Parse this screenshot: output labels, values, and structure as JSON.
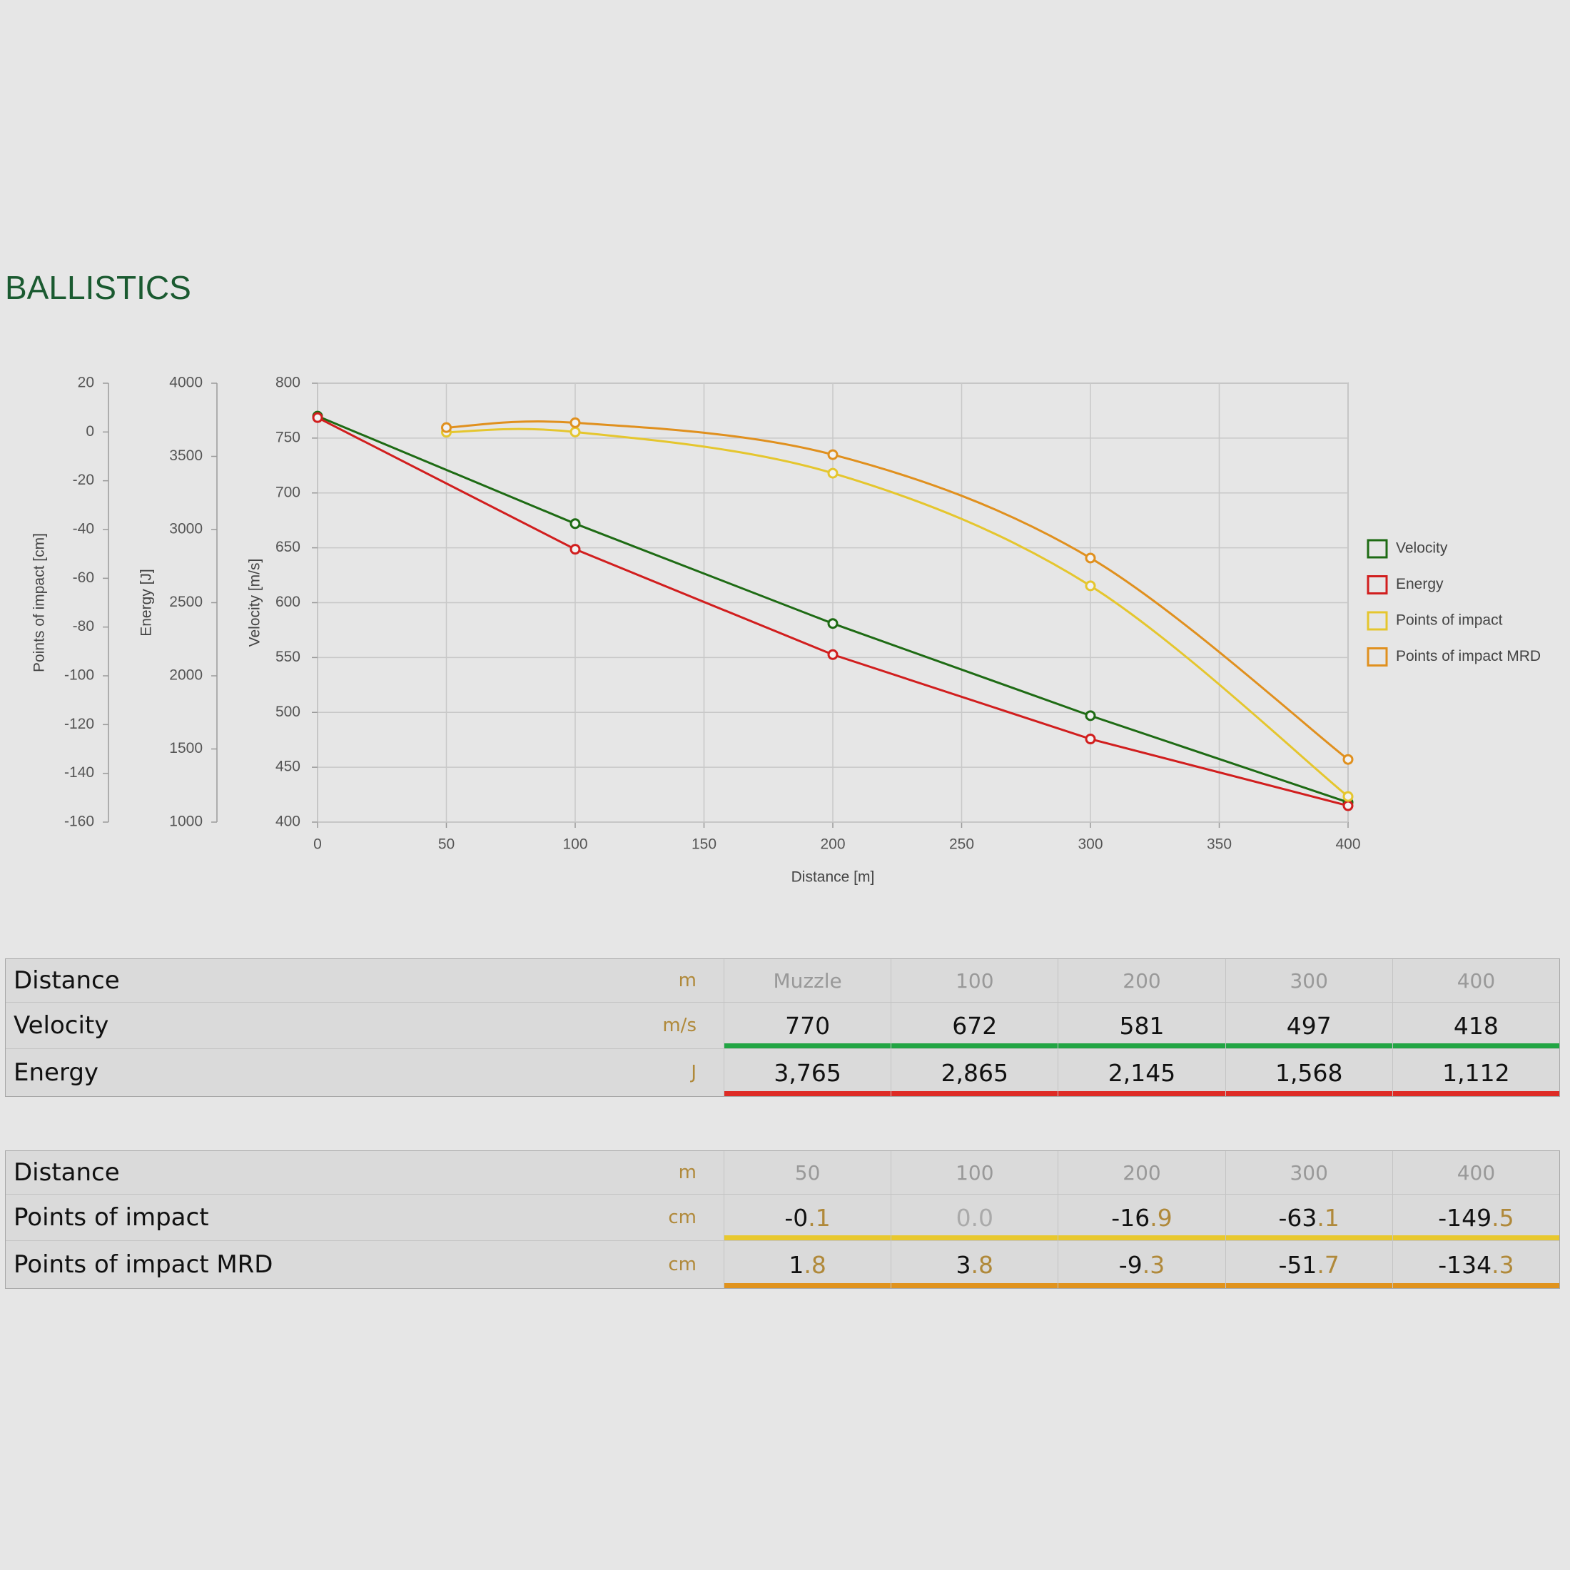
{
  "title": "BALLISTICS",
  "chart_data": {
    "type": "line",
    "xlabel": "Distance [m]",
    "xlim": [
      0,
      400
    ],
    "xticks": [
      0,
      50,
      100,
      150,
      200,
      250,
      300,
      350,
      400
    ],
    "ylabel": "Velocity [m/s]",
    "ylim": [
      400,
      800
    ],
    "yticks": [
      400,
      450,
      500,
      550,
      600,
      650,
      700,
      750,
      800
    ],
    "y2label": "Energy [J]",
    "y2lim": [
      1000,
      4000
    ],
    "y2ticks": [
      1000,
      1500,
      2000,
      2500,
      3000,
      3500,
      4000
    ],
    "y3label": "Points of impact [cm]",
    "y3lim": [
      -160,
      20
    ],
    "y3ticks": [
      -160,
      -140,
      -120,
      -100,
      -80,
      -60,
      -40,
      -20,
      0,
      20
    ],
    "grid": true,
    "legend": "right",
    "series": [
      {
        "name": "Velocity",
        "color": "#1e6b14",
        "axis": "y",
        "smooth": false,
        "x": [
          0,
          100,
          200,
          300,
          400
        ],
        "values": [
          770,
          672,
          581,
          497,
          418
        ]
      },
      {
        "name": "Energy",
        "color": "#d11e1e",
        "axis": "y2",
        "smooth": false,
        "x": [
          0,
          100,
          200,
          300,
          400
        ],
        "values": [
          3765,
          2865,
          2145,
          1568,
          1112
        ]
      },
      {
        "name": "Points of impact",
        "color": "#e5c62e",
        "axis": "y3",
        "smooth": true,
        "x": [
          50,
          100,
          200,
          300,
          400
        ],
        "values": [
          -0.1,
          0.0,
          -16.9,
          -63.1,
          -149.5
        ]
      },
      {
        "name": "Points of impact MRD",
        "color": "#e0901e",
        "axis": "y3",
        "smooth": true,
        "x": [
          50,
          100,
          200,
          300,
          400
        ],
        "values": [
          1.8,
          3.8,
          -9.3,
          -51.7,
          -134.3
        ]
      }
    ]
  },
  "tables": [
    {
      "header": {
        "label": "Distance",
        "unit": "m",
        "cells": [
          "Muzzle",
          "100",
          "200",
          "300",
          "400"
        ]
      },
      "rows": [
        {
          "label": "Velocity",
          "unit": "m/s",
          "color": "#22a544",
          "cells": [
            "770",
            "672",
            "581",
            "497",
            "418"
          ]
        },
        {
          "label": "Energy",
          "unit": "J",
          "color": "#de2b25",
          "cells": [
            "3,765",
            "2,865",
            "2,145",
            "1,568",
            "1,112"
          ]
        }
      ]
    },
    {
      "header": {
        "label": "Distance",
        "unit": "m",
        "cells": [
          "50",
          "100",
          "200",
          "300",
          "400"
        ]
      },
      "rows": [
        {
          "label": "Points of impact",
          "unit": "cm",
          "color": "#e8c82e",
          "cells": [
            "-0.1",
            "0.0",
            "-16.9",
            "-63.1",
            "-149.5"
          ]
        },
        {
          "label": "Points of impact MRD",
          "unit": "cm",
          "color": "#e0931e",
          "cells": [
            "1.8",
            "3.8",
            "-9.3",
            "-51.7",
            "-134.3"
          ]
        }
      ]
    }
  ]
}
